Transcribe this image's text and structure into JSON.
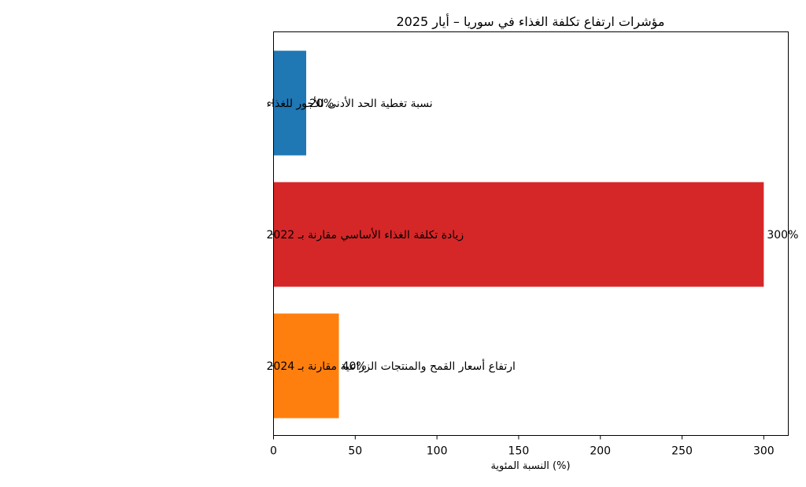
{
  "chart_data": {
    "type": "bar",
    "orientation": "horizontal",
    "title": "مؤشرات ارتفاع تكلفة الغذاء في سوريا – أيار 2025",
    "xlabel": "النسبة المئوية (%)",
    "ylabel": "",
    "xlim": [
      0,
      315
    ],
    "xticks": [
      0,
      50,
      100,
      150,
      200,
      250,
      300
    ],
    "grid": false,
    "legend": "none",
    "categories": [
      "نسبة تغطية الحد الأدنى للأجور للغذاء",
      "زيادة تكلفة الغذاء الأساسي مقارنة بـ 2022",
      "ارتفاع أسعار القمح والمنتجات الزراعية مقارنة بـ 2024"
    ],
    "values": [
      20,
      300,
      40
    ],
    "value_labels": [
      "20%",
      "300%",
      "40%"
    ],
    "colors": [
      "#1f77b4",
      "#d62728",
      "#ff7f0e"
    ]
  }
}
